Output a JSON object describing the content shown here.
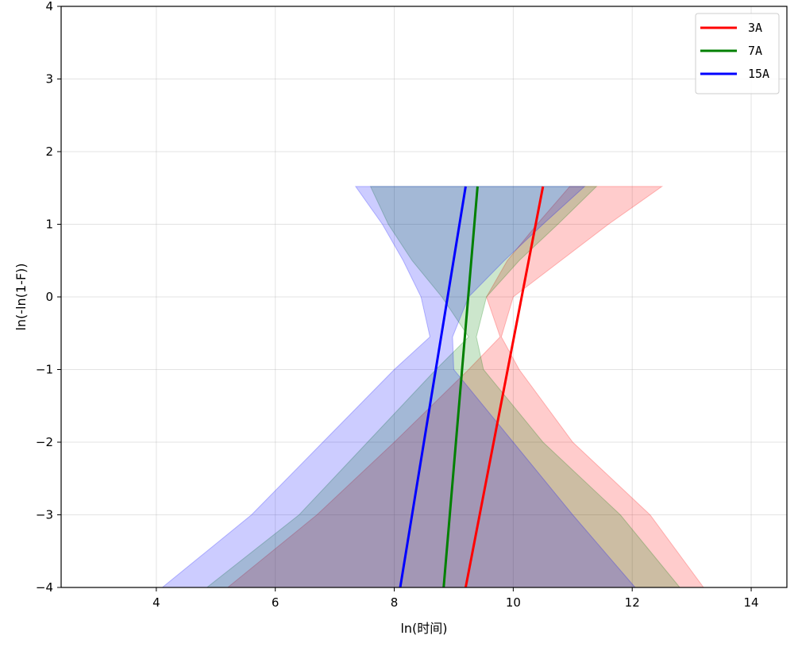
{
  "chart_data": {
    "type": "line",
    "xlabel": "ln(时间)",
    "ylabel": "ln(-ln(1-F))",
    "xlim": [
      2.4,
      14.6
    ],
    "ylim": [
      -4,
      4
    ],
    "x_ticks": [
      4,
      6,
      8,
      10,
      12,
      14
    ],
    "y_ticks": [
      -4,
      -3,
      -2,
      -1,
      0,
      1,
      2,
      3,
      4
    ],
    "grid": true,
    "legend_position": "top-right",
    "series": [
      {
        "name": "3A",
        "color": "#ff0000",
        "line": [
          {
            "x": 9.2,
            "y": -4
          },
          {
            "x": 10.5,
            "y": 1.52
          }
        ],
        "band": {
          "y": [
            -4,
            -3,
            -2,
            -1,
            -0.55,
            0,
            0.5,
            1,
            1.52
          ],
          "lower": [
            5.2,
            6.7,
            8.0,
            9.25,
            9.78,
            9.55,
            9.9,
            10.4,
            10.95
          ],
          "upper": [
            13.2,
            12.3,
            11.0,
            10.1,
            9.8,
            10.0,
            10.8,
            11.6,
            12.5
          ]
        }
      },
      {
        "name": "7A",
        "color": "#008000",
        "line": [
          {
            "x": 8.83,
            "y": -4
          },
          {
            "x": 9.4,
            "y": 1.52
          }
        ],
        "band": {
          "y": [
            -4,
            -3,
            -2,
            -1,
            -0.55,
            0,
            0.5,
            1,
            1.52
          ],
          "lower": [
            4.85,
            6.4,
            7.55,
            8.7,
            9.25,
            8.8,
            8.3,
            7.9,
            7.6
          ],
          "upper": [
            12.8,
            11.8,
            10.5,
            9.5,
            9.38,
            9.55,
            10.1,
            10.75,
            11.4
          ]
        }
      },
      {
        "name": "15A",
        "color": "#0000ff",
        "line": [
          {
            "x": 8.1,
            "y": -4
          },
          {
            "x": 9.2,
            "y": 1.52
          }
        ],
        "band": {
          "y": [
            -4,
            -3,
            -2,
            -1,
            -0.55,
            0,
            0.5,
            1,
            1.52
          ],
          "lower": [
            4.1,
            5.6,
            6.8,
            8.0,
            8.6,
            8.45,
            8.15,
            7.8,
            7.35
          ],
          "upper": [
            12.05,
            11.0,
            10.0,
            9.0,
            8.98,
            9.25,
            9.85,
            10.5,
            11.2
          ]
        }
      }
    ]
  }
}
